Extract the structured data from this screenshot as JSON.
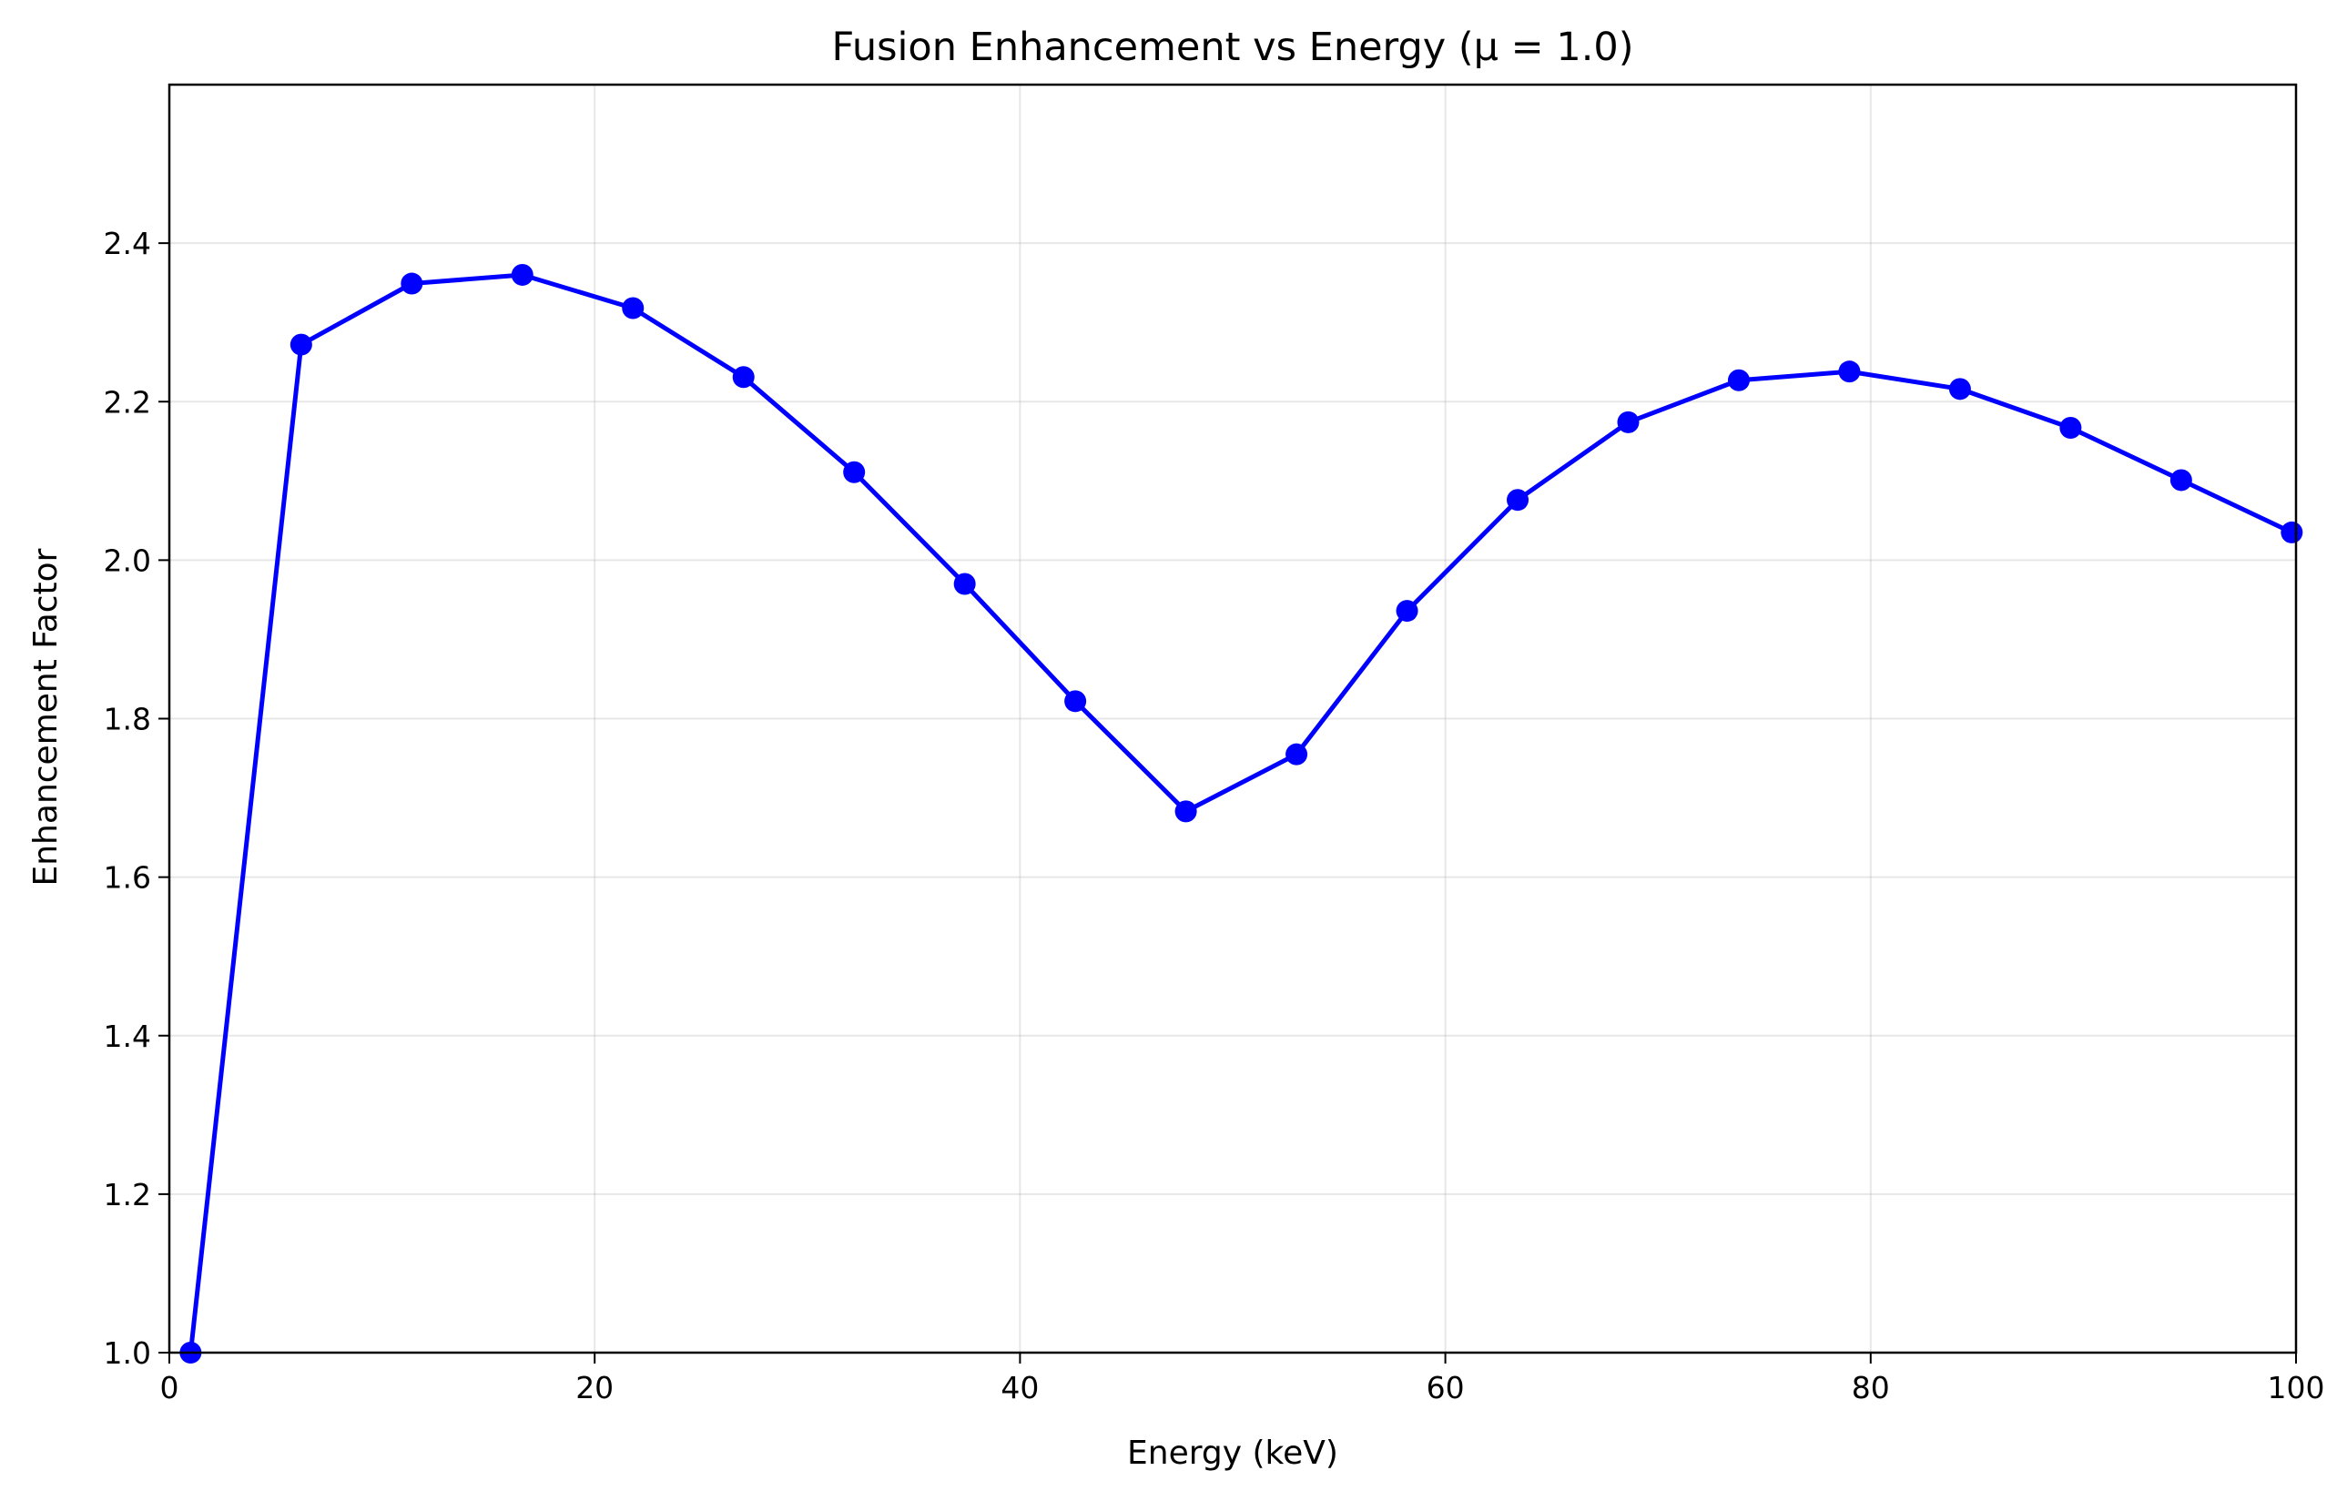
{
  "chart_data": {
    "type": "line",
    "title": "Fusion Enhancement vs Energy (μ = 1.0)",
    "xlabel": "Energy (keV)",
    "ylabel": "Enhancement Factor",
    "xlim": [
      0,
      100
    ],
    "ylim": [
      1.0,
      2.6
    ],
    "xticks": [
      "0",
      "20",
      "40",
      "60",
      "80",
      "100"
    ],
    "yticks": [
      "1.0",
      "1.2",
      "1.4",
      "1.6",
      "1.8",
      "2.0",
      "2.2",
      "2.4"
    ],
    "grid": true,
    "line_color": "#0000ff",
    "series": [
      {
        "x": [
          1.0,
          6.2,
          11.4,
          16.6,
          21.8,
          27.0,
          32.2,
          37.4,
          42.6,
          47.8,
          53.0,
          58.2,
          63.4,
          68.6,
          73.8,
          79.0,
          84.2,
          89.4,
          94.6,
          99.8
        ],
        "y": [
          1.0,
          2.272,
          2.349,
          2.36,
          2.318,
          2.231,
          2.111,
          1.97,
          1.822,
          1.683,
          1.755,
          1.936,
          2.076,
          2.174,
          2.227,
          2.238,
          2.216,
          2.167,
          2.101,
          2.035
        ]
      }
    ]
  }
}
